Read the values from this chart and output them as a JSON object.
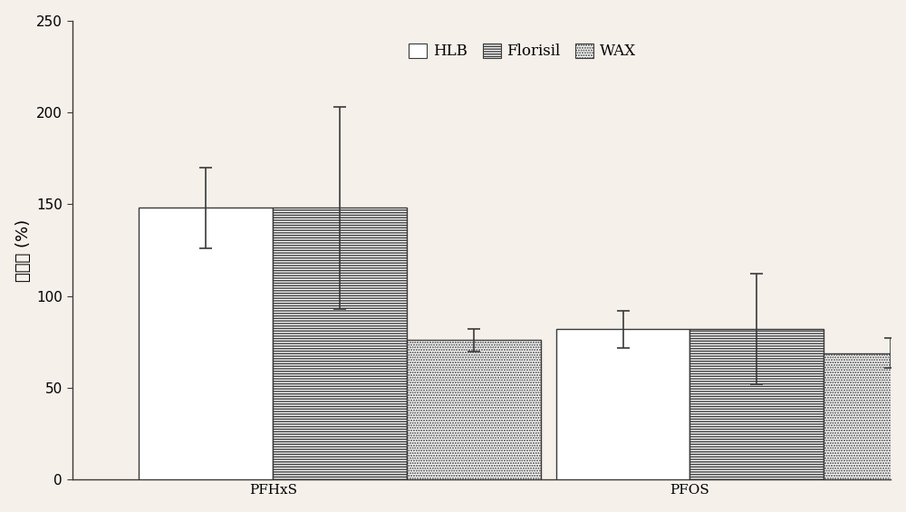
{
  "categories": [
    "PFHxS",
    "PFOS"
  ],
  "series": [
    {
      "name": "HLB",
      "values": [
        148,
        82
      ],
      "errors": [
        22,
        10
      ],
      "hatch": "",
      "facecolor": "#ffffff",
      "edgecolor": "#3a3a3a"
    },
    {
      "name": "Florisil",
      "values": [
        148,
        82
      ],
      "errors": [
        55,
        30
      ],
      "hatch": "------",
      "facecolor": "#ffffff",
      "edgecolor": "#3a3a3a"
    },
    {
      "name": "WAX",
      "values": [
        76,
        69
      ],
      "errors": [
        6,
        8
      ],
      "hatch": "......",
      "facecolor": "#ffffff",
      "edgecolor": "#3a3a3a"
    }
  ],
  "ylabel": "回收率 (%)",
  "ylim": [
    0,
    250
  ],
  "yticks": [
    0,
    50,
    100,
    150,
    200,
    250
  ],
  "bar_width": 0.18,
  "background_color": "#f5f0ea",
  "axis_color": "#3a3a3a",
  "fontsize_axis_label": 13,
  "fontsize_tick": 11,
  "fontsize_legend": 12,
  "group_centers": [
    0.32,
    0.88
  ]
}
